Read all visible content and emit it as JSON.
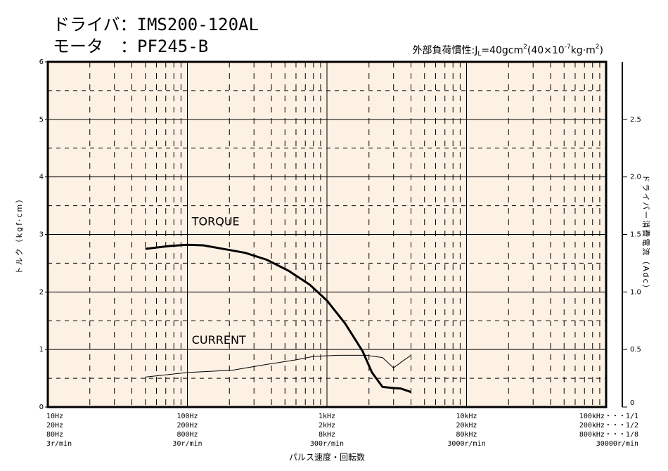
{
  "header": {
    "driver": "ドライバ：IMS200-120AL",
    "motor": "モータ　：PF245-B",
    "inertia_note": [
      "外部負荷慣性:J",
      "L",
      "=40gcm",
      "2",
      "(40×10",
      "-7",
      "kg·m",
      "2",
      ")"
    ]
  },
  "chart_data": {
    "type": "line",
    "xlabel": "パルス速度・回転数",
    "ylabel": "トルク（kgf·cm）",
    "y2label": "ドライバー消費電流（Adc）",
    "xscale": "log",
    "grid": true,
    "xlim": [
      10,
      100000
    ],
    "xticks": [
      {
        "value": 10,
        "label": "10Hz"
      },
      {
        "value": 100,
        "label": "100Hz"
      },
      {
        "value": 1000,
        "label": "1kHz"
      },
      {
        "value": 10000,
        "label": "10kHz"
      },
      {
        "value": 100000,
        "label": "100kHz・・・1/1"
      }
    ],
    "xtick_sublabels": [
      [
        "20Hz",
        "80Hz",
        "3r/min"
      ],
      [
        "200Hz",
        "800Hz",
        "30r/min"
      ],
      [
        "2kHz",
        "8kHz",
        "300r/min"
      ],
      [
        "20kHz",
        "80kHz",
        "3000r/min"
      ],
      [
        "200kHz・・・1/2",
        "800kHz・・・1/8",
        "30000r/min"
      ]
    ],
    "ylim": [
      0,
      6
    ],
    "yticks": [
      0,
      1,
      2,
      3,
      4,
      5,
      6
    ],
    "y2lim": [
      0,
      3
    ],
    "y2ticks": [
      0,
      0.5,
      {
        "value": 1,
        "label": "1.0"
      },
      1.5,
      {
        "value": 2,
        "label": "2.0"
      },
      2.5
    ],
    "series": [
      {
        "name": "TORQUE",
        "color": "#000000",
        "x": [
          50,
          75,
          100,
          130,
          190,
          260,
          370,
          530,
          750,
          1000,
          1350,
          1800,
          2100,
          2500,
          3000,
          3400,
          4000
        ],
        "values": [
          2.75,
          2.8,
          2.82,
          2.81,
          2.74,
          2.68,
          2.56,
          2.37,
          2.13,
          1.85,
          1.45,
          0.97,
          0.6,
          0.35,
          0.33,
          0.32,
          0.26
        ]
      },
      {
        "name": "CURRENT",
        "color": "#000000",
        "axis": "y2",
        "x": [
          50,
          100,
          210,
          370,
          600,
          800,
          1200,
          1900,
          2500,
          3000,
          3400,
          4000
        ],
        "values": [
          0.26,
          0.3,
          0.32,
          0.37,
          0.41,
          0.44,
          0.45,
          0.45,
          0.43,
          0.34,
          0.39,
          0.45
        ]
      }
    ]
  }
}
